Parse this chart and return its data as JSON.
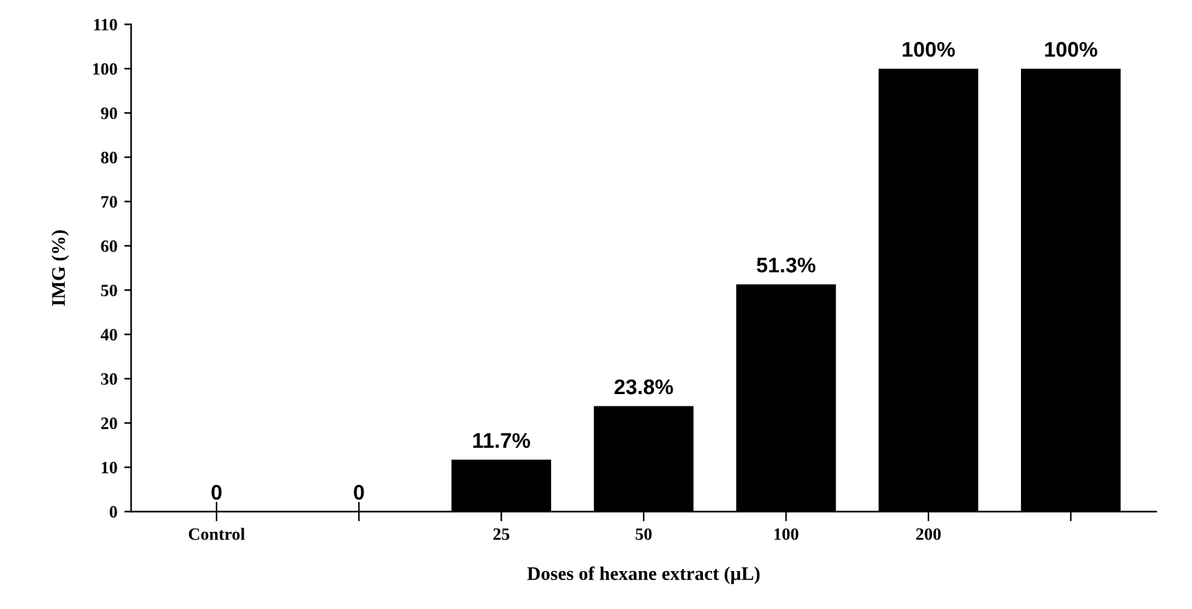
{
  "chart_data": {
    "type": "bar",
    "xlabel": "Doses of hexane extract (µL)",
    "ylabel": "IMG (%)",
    "categories": [
      "Control",
      null,
      "25",
      "50",
      "100",
      "200",
      null
    ],
    "values": [
      0,
      0,
      11.7,
      23.8,
      51.3,
      100,
      100
    ],
    "value_labels": [
      "0",
      "0",
      "11.7%",
      "23.8%",
      "51.3%",
      "100%",
      "100%"
    ],
    "color": "#000000",
    "ylim": [
      0,
      110
    ],
    "yticks": [
      0,
      10,
      20,
      30,
      40,
      50,
      60,
      70,
      80,
      90,
      100,
      110
    ],
    "grid": false,
    "legend": false
  }
}
